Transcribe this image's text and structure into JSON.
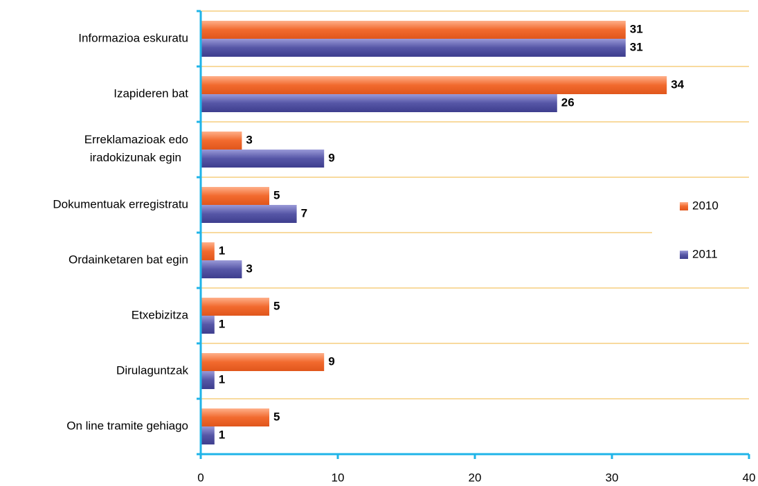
{
  "chart_data": {
    "type": "barh",
    "categories": [
      "Informazioa eskuratu",
      "Izapideren bat",
      "Erreklamazioak edo\niradokizunak egin",
      "Dokumentuak erregistratu",
      "Ordainketaren bat egin",
      "Etxebizitza",
      "Dirulaguntzak",
      "On line tramite gehiago"
    ],
    "series": [
      {
        "name": "2010",
        "color": "#f26a2e",
        "values": [
          31,
          34,
          3,
          5,
          1,
          5,
          9,
          5
        ]
      },
      {
        "name": "2011",
        "color": "#5656a6",
        "values": [
          31,
          26,
          9,
          7,
          3,
          1,
          1,
          1
        ]
      }
    ],
    "xlim": [
      0,
      40
    ],
    "xticks": [
      0,
      10,
      20,
      30,
      40
    ],
    "grid": true,
    "legend": "right"
  }
}
